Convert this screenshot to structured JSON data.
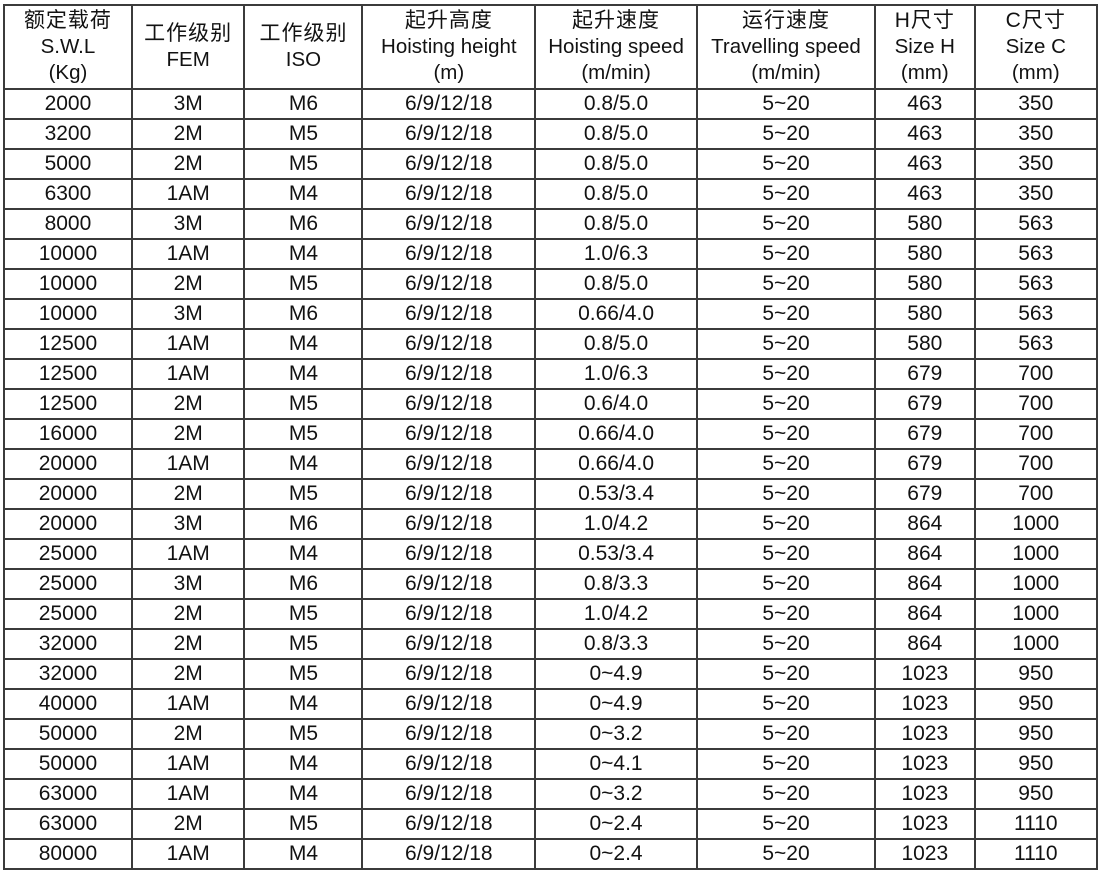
{
  "page": {
    "background_color": "#ffffff",
    "border_color": "#3b3b3b",
    "text_color": "#121212"
  },
  "table": {
    "col_widths_pct": [
      11.7,
      10.3,
      10.8,
      15.8,
      14.8,
      16.3,
      9.1,
      11.2
    ],
    "headers": [
      {
        "zh": "额定载荷",
        "en": "S.W.L",
        "unit": "(Kg)"
      },
      {
        "zh": "工作级别",
        "en": "FEM",
        "unit": ""
      },
      {
        "zh": "工作级别",
        "en": "ISO",
        "unit": ""
      },
      {
        "zh": "起升高度",
        "en": "Hoisting height",
        "unit": "(m)"
      },
      {
        "zh": "起升速度",
        "en": "Hoisting speed",
        "unit": "(m/min)"
      },
      {
        "zh": "运行速度",
        "en": "Travelling speed",
        "unit": "(m/min)"
      },
      {
        "zh": "H尺寸",
        "en": "Size H",
        "unit": "(mm)"
      },
      {
        "zh": "C尺寸",
        "en": "Size C",
        "unit": "(mm)"
      }
    ],
    "rows": [
      [
        "2000",
        "3M",
        "M6",
        "6/9/12/18",
        "0.8/5.0",
        "5~20",
        "463",
        "350"
      ],
      [
        "3200",
        "2M",
        "M5",
        "6/9/12/18",
        "0.8/5.0",
        "5~20",
        "463",
        "350"
      ],
      [
        "5000",
        "2M",
        "M5",
        "6/9/12/18",
        "0.8/5.0",
        "5~20",
        "463",
        "350"
      ],
      [
        "6300",
        "1AM",
        "M4",
        "6/9/12/18",
        "0.8/5.0",
        "5~20",
        "463",
        "350"
      ],
      [
        "8000",
        "3M",
        "M6",
        "6/9/12/18",
        "0.8/5.0",
        "5~20",
        "580",
        "563"
      ],
      [
        "10000",
        "1AM",
        "M4",
        "6/9/12/18",
        "1.0/6.3",
        "5~20",
        "580",
        "563"
      ],
      [
        "10000",
        "2M",
        "M5",
        "6/9/12/18",
        "0.8/5.0",
        "5~20",
        "580",
        "563"
      ],
      [
        "10000",
        "3M",
        "M6",
        "6/9/12/18",
        "0.66/4.0",
        "5~20",
        "580",
        "563"
      ],
      [
        "12500",
        "1AM",
        "M4",
        "6/9/12/18",
        "0.8/5.0",
        "5~20",
        "580",
        "563"
      ],
      [
        "12500",
        "1AM",
        "M4",
        "6/9/12/18",
        "1.0/6.3",
        "5~20",
        "679",
        "700"
      ],
      [
        "12500",
        "2M",
        "M5",
        "6/9/12/18",
        "0.6/4.0",
        "5~20",
        "679",
        "700"
      ],
      [
        "16000",
        "2M",
        "M5",
        "6/9/12/18",
        "0.66/4.0",
        "5~20",
        "679",
        "700"
      ],
      [
        "20000",
        "1AM",
        "M4",
        "6/9/12/18",
        "0.66/4.0",
        "5~20",
        "679",
        "700"
      ],
      [
        "20000",
        "2M",
        "M5",
        "6/9/12/18",
        "0.53/3.4",
        "5~20",
        "679",
        "700"
      ],
      [
        "20000",
        "3M",
        "M6",
        "6/9/12/18",
        "1.0/4.2",
        "5~20",
        "864",
        "1000"
      ],
      [
        "25000",
        "1AM",
        "M4",
        "6/9/12/18",
        "0.53/3.4",
        "5~20",
        "864",
        "1000"
      ],
      [
        "25000",
        "3M",
        "M6",
        "6/9/12/18",
        "0.8/3.3",
        "5~20",
        "864",
        "1000"
      ],
      [
        "25000",
        "2M",
        "M5",
        "6/9/12/18",
        "1.0/4.2",
        "5~20",
        "864",
        "1000"
      ],
      [
        "32000",
        "2M",
        "M5",
        "6/9/12/18",
        "0.8/3.3",
        "5~20",
        "864",
        "1000"
      ],
      [
        "32000",
        "2M",
        "M5",
        "6/9/12/18",
        "0~4.9",
        "5~20",
        "1023",
        "950"
      ],
      [
        "40000",
        "1AM",
        "M4",
        "6/9/12/18",
        "0~4.9",
        "5~20",
        "1023",
        "950"
      ],
      [
        "50000",
        "2M",
        "M5",
        "6/9/12/18",
        "0~3.2",
        "5~20",
        "1023",
        "950"
      ],
      [
        "50000",
        "1AM",
        "M4",
        "6/9/12/18",
        "0~4.1",
        "5~20",
        "1023",
        "950"
      ],
      [
        "63000",
        "1AM",
        "M4",
        "6/9/12/18",
        "0~3.2",
        "5~20",
        "1023",
        "950"
      ],
      [
        "63000",
        "2M",
        "M5",
        "6/9/12/18",
        "0~2.4",
        "5~20",
        "1023",
        "1110"
      ],
      [
        "80000",
        "1AM",
        "M4",
        "6/9/12/18",
        "0~2.4",
        "5~20",
        "1023",
        "1110"
      ]
    ]
  }
}
